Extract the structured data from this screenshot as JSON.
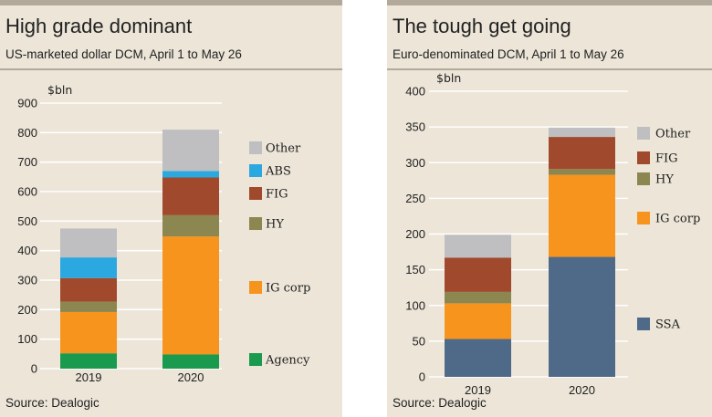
{
  "colors": {
    "Agency": "#1a9a4e",
    "IG corp": "#f7941d",
    "HY": "#8c8650",
    "FIG": "#a0492c",
    "ABS": "#2aa8df",
    "Other": "#bfbfc1",
    "SSA": "#4f6a88"
  },
  "chart_data": [
    {
      "type": "bar",
      "stacked": true,
      "title": "High grade dominant",
      "subtitle": "US-marketed dollar DCM, April 1 to May 26",
      "ylabel": "$bln",
      "ylim": [
        0,
        900
      ],
      "yticks": [
        0,
        100,
        200,
        300,
        400,
        500,
        600,
        700,
        800,
        900
      ],
      "categories": [
        "2019",
        "2020"
      ],
      "series": [
        {
          "name": "Agency",
          "values": [
            52,
            48
          ]
        },
        {
          "name": "IG corp",
          "values": [
            140,
            400
          ]
        },
        {
          "name": "HY",
          "values": [
            35,
            72
          ]
        },
        {
          "name": "FIG",
          "values": [
            80,
            128
          ]
        },
        {
          "name": "ABS",
          "values": [
            70,
            22
          ]
        },
        {
          "name": "Other",
          "values": [
            98,
            140
          ]
        }
      ],
      "legend": [
        "Other",
        "ABS",
        "FIG",
        "HY",
        "IG corp",
        "Agency"
      ],
      "source": "Source: Dealogic"
    },
    {
      "type": "bar",
      "stacked": true,
      "title": "The tough get going",
      "subtitle": "Euro-denominated DCM, April 1 to May 26",
      "ylabel": "$bln",
      "ylim": [
        0,
        400
      ],
      "yticks": [
        0,
        50,
        100,
        150,
        200,
        250,
        300,
        350,
        400
      ],
      "categories": [
        "2019",
        "2020"
      ],
      "series": [
        {
          "name": "SSA",
          "values": [
            53,
            168
          ]
        },
        {
          "name": "IG corp",
          "values": [
            50,
            115
          ]
        },
        {
          "name": "HY",
          "values": [
            16,
            8
          ]
        },
        {
          "name": "FIG",
          "values": [
            48,
            45
          ]
        },
        {
          "name": "Other",
          "values": [
            32,
            13
          ]
        }
      ],
      "legend": [
        "Other",
        "FIG",
        "HY",
        "IG corp",
        "SSA"
      ],
      "source": "Source: Dealogic"
    }
  ]
}
